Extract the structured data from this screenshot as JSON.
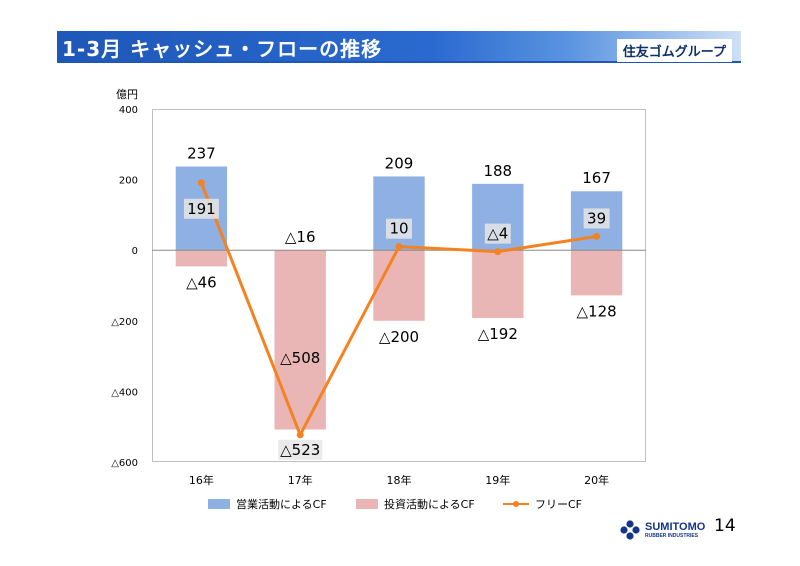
{
  "header": {
    "title": "1-3月 キャッシュ・フローの推移",
    "brand": "住友ゴムグループ"
  },
  "footer": {
    "logo_main": "SUMITOMO",
    "logo_sub": "RUBBER INDUSTRIES",
    "page_number": "14"
  },
  "colors": {
    "header_blue": "#1e57b7",
    "operating": "#8eb0e2",
    "investing": "#e9b5b5",
    "free_cf": "#f58220"
  },
  "chart_data": {
    "type": "bar",
    "unit_label": "億円",
    "categories": [
      "16年",
      "17年",
      "18年",
      "19年",
      "20年"
    ],
    "ylim": [
      -600,
      400
    ],
    "yticks": [
      400,
      200,
      0,
      -200,
      -400,
      -600
    ],
    "ytick_labels": [
      "400",
      "200",
      "0",
      "△200",
      "△400",
      "△600"
    ],
    "series": [
      {
        "name": "営業活動によるCF",
        "kind": "bar",
        "values": [
          237,
          -16,
          209,
          188,
          167
        ],
        "labels": [
          "237",
          "△16",
          "209",
          "188",
          "167"
        ]
      },
      {
        "name": "投資活動によるCF",
        "kind": "bar",
        "values": [
          -46,
          -508,
          -200,
          -192,
          -128
        ],
        "labels": [
          "△46",
          "△508",
          "△200",
          "△192",
          "△128"
        ]
      },
      {
        "name": "フリーCF",
        "kind": "line",
        "values": [
          191,
          -523,
          10,
          -4,
          39
        ],
        "labels": [
          "191",
          "△523",
          "10",
          "△4",
          "39"
        ]
      }
    ]
  }
}
